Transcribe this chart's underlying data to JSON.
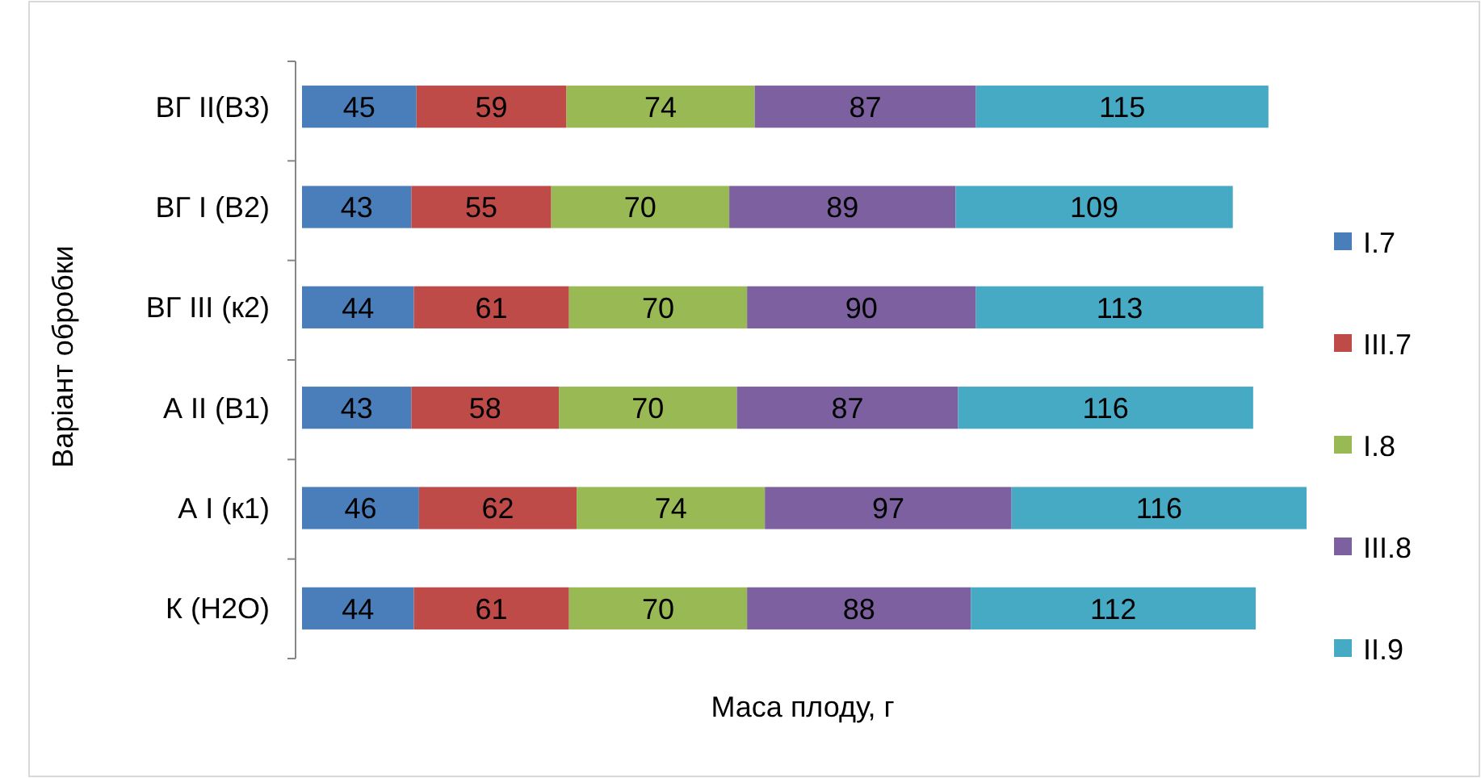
{
  "chart_data": {
    "type": "bar",
    "orientation": "horizontal",
    "stacked": true,
    "xlabel": "Маса плоду, г",
    "ylabel": "Варіант обробки",
    "categories": [
      "ВГ ІІ(В3)",
      "ВГ І (В2)",
      "ВГ ІІІ (к2)",
      "А ІІ (В1)",
      "А І (к1)",
      "К (Н2О)"
    ],
    "series": [
      {
        "name": "I.7",
        "color": "#4a7ebb",
        "values": [
          45,
          43,
          44,
          43,
          46,
          44
        ]
      },
      {
        "name": "III.7",
        "color": "#be4b48",
        "values": [
          59,
          55,
          61,
          58,
          62,
          61
        ]
      },
      {
        "name": "I.8",
        "color": "#98b954",
        "values": [
          74,
          70,
          70,
          70,
          74,
          70
        ]
      },
      {
        "name": "III.8",
        "color": "#7d60a0",
        "values": [
          87,
          89,
          90,
          87,
          97,
          88
        ]
      },
      {
        "name": "II.9",
        "color": "#46aac5",
        "values": [
          115,
          109,
          113,
          116,
          116,
          112
        ]
      }
    ],
    "tick_labels": "y",
    "data_labels": true,
    "legend": "right",
    "grid": false
  }
}
